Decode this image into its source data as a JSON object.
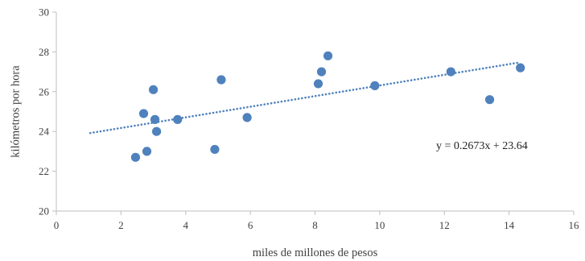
{
  "chart_data": {
    "type": "scatter",
    "xlabel": "miles de millones de pesos",
    "ylabel": "kilómetros por hora",
    "xlim": [
      0,
      16
    ],
    "ylim": [
      20,
      30
    ],
    "x_ticks": [
      0,
      2,
      4,
      6,
      8,
      10,
      12,
      14,
      16
    ],
    "y_ticks": [
      20,
      22,
      24,
      26,
      28,
      30
    ],
    "grid": false,
    "point_color": "#4f81bd",
    "points": [
      {
        "x": 2.45,
        "y": 22.7
      },
      {
        "x": 2.7,
        "y": 24.9
      },
      {
        "x": 2.8,
        "y": 23.0
      },
      {
        "x": 3.0,
        "y": 26.1
      },
      {
        "x": 3.05,
        "y": 24.6
      },
      {
        "x": 3.1,
        "y": 24.0
      },
      {
        "x": 3.75,
        "y": 24.6
      },
      {
        "x": 4.9,
        "y": 23.1
      },
      {
        "x": 5.1,
        "y": 26.6
      },
      {
        "x": 5.9,
        "y": 24.7
      },
      {
        "x": 8.1,
        "y": 26.4
      },
      {
        "x": 8.2,
        "y": 27.0
      },
      {
        "x": 8.4,
        "y": 27.8
      },
      {
        "x": 9.85,
        "y": 26.3
      },
      {
        "x": 12.2,
        "y": 27.0
      },
      {
        "x": 13.4,
        "y": 25.6
      },
      {
        "x": 14.35,
        "y": 27.2
      }
    ],
    "trendline": {
      "slope": 0.2673,
      "intercept": 23.64,
      "x_start": 1.05,
      "x_end": 14.35,
      "style": "dotted",
      "color": "#4f81bd",
      "label": "y = 0.2673x + 23.64"
    }
  }
}
